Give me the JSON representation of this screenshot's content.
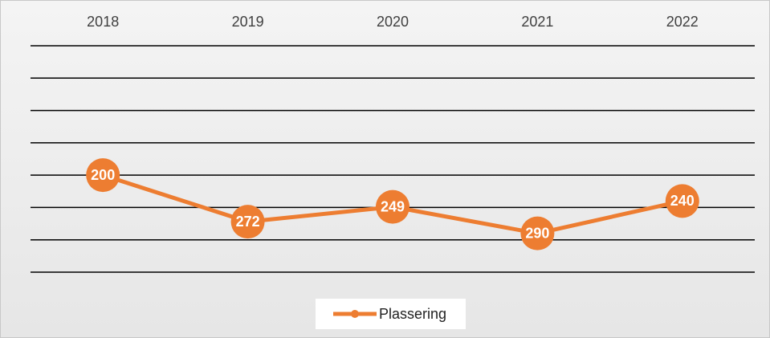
{
  "chart_data": {
    "type": "line",
    "categories": [
      "2018",
      "2019",
      "2020",
      "2021",
      "2022"
    ],
    "series": [
      {
        "name": "Plassering",
        "color": "#ed7d31",
        "values": [
          200,
          272,
          249,
          290,
          240
        ]
      }
    ],
    "ylim": [
      0,
      350
    ],
    "yticks": [
      0,
      50,
      100,
      150,
      200,
      250,
      300,
      350
    ],
    "y_reversed": true,
    "grid": true,
    "legend": "bottom"
  }
}
